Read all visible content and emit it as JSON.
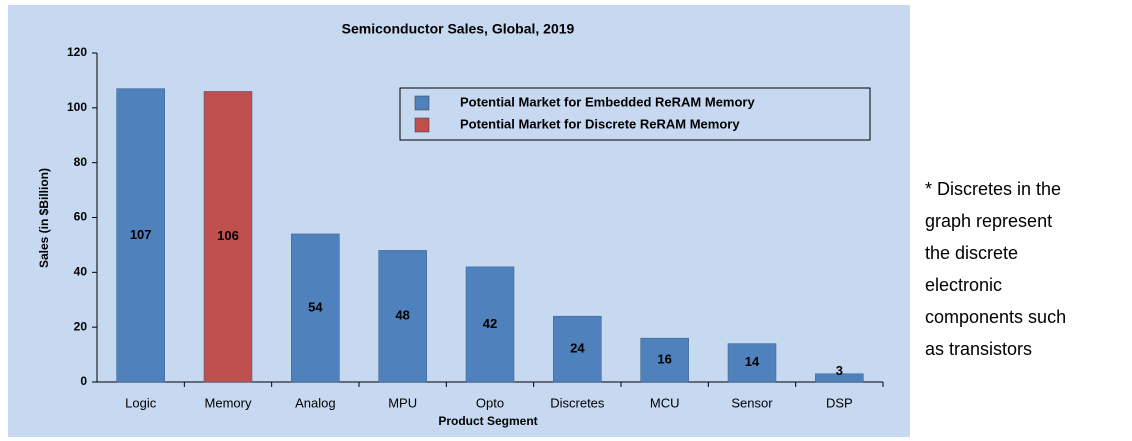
{
  "chart_data": {
    "type": "bar",
    "title": "Semiconductor Sales, Global, 2019",
    "x_label": "Product Segment",
    "y_label": "Sales (in $Billion)",
    "categories": [
      "Logic",
      "Memory",
      "Analog",
      "MPU",
      "Opto",
      "Discretes",
      "MCU",
      "Sensor",
      "DSP"
    ],
    "series": [
      {
        "name": "Potential Market for Embedded ReRAM Memory",
        "color": "#4f81bd",
        "values": [
          107,
          null,
          54,
          48,
          42,
          24,
          16,
          14,
          3
        ]
      },
      {
        "name": "Potential Market for Discrete ReRAM Memory",
        "color": "#c0504d",
        "values": [
          null,
          106,
          null,
          null,
          null,
          null,
          null,
          null,
          null
        ]
      }
    ],
    "ylim": [
      0,
      120
    ],
    "yticks": [
      0,
      20,
      40,
      60,
      80,
      100,
      120
    ],
    "grid": false,
    "legend": "upper right"
  },
  "note": [
    "* Discretes in the",
    "graph represent",
    "the discrete",
    "electronic",
    "components such",
    "as transistors"
  ]
}
